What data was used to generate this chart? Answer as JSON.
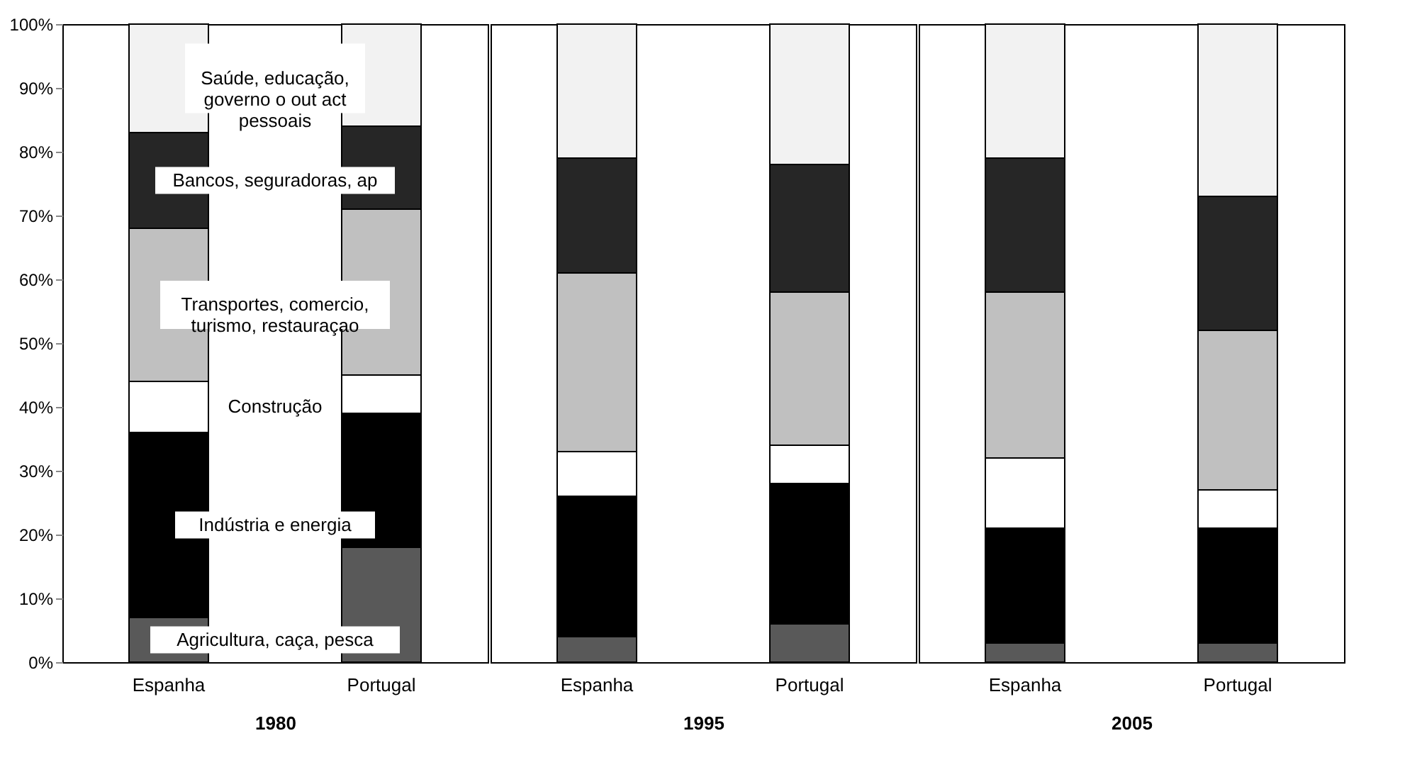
{
  "chart_data": [
    {
      "type": "bar",
      "stacked": true,
      "xlabel": "1980",
      "categories": [
        "Espanha",
        "Portugal"
      ],
      "ylim": [
        0,
        100
      ],
      "yticks": [
        {
          "value": 0,
          "label": "0%"
        },
        {
          "value": 10,
          "label": "10%"
        },
        {
          "value": 20,
          "label": "20%"
        },
        {
          "value": 30,
          "label": "30%"
        },
        {
          "value": 40,
          "label": "40%"
        },
        {
          "value": 50,
          "label": "50%"
        },
        {
          "value": 60,
          "label": "60%"
        },
        {
          "value": 70,
          "label": "70%"
        },
        {
          "value": 80,
          "label": "80%"
        },
        {
          "value": 90,
          "label": "90%"
        },
        {
          "value": 100,
          "label": "100%"
        }
      ],
      "grid": false,
      "legend": false,
      "series": [
        {
          "name": "Agricultura, caça, pesca",
          "color": "#595959",
          "values": [
            7,
            18
          ]
        },
        {
          "name": "Indústria e energia",
          "color": "#000000",
          "values": [
            29,
            21
          ]
        },
        {
          "name": "Construção",
          "color": "#ffffff",
          "values": [
            8,
            6
          ]
        },
        {
          "name": "Transportes, comercio,\nturismo, restauraçao",
          "color": "#c0c0c0",
          "values": [
            24,
            26
          ]
        },
        {
          "name": "Bancos, seguradoras, ap",
          "color": "#262626",
          "values": [
            15,
            13
          ]
        },
        {
          "name": "Saúde, educação,\ngoverno o out act\npessoais",
          "color": "#f2f2f2",
          "values": [
            17,
            16
          ]
        }
      ]
    },
    {
      "type": "bar",
      "stacked": true,
      "xlabel": "1995",
      "categories": [
        "Espanha",
        "Portugal"
      ],
      "ylim": [
        0,
        100
      ],
      "tick_labels": "x",
      "grid": false,
      "legend": false,
      "series": [
        {
          "color": "#595959",
          "values": [
            4,
            6
          ]
        },
        {
          "color": "#000000",
          "values": [
            22,
            22
          ]
        },
        {
          "color": "#ffffff",
          "values": [
            7,
            6
          ]
        },
        {
          "color": "#c0c0c0",
          "values": [
            28,
            24
          ]
        },
        {
          "color": "#262626",
          "values": [
            18,
            20
          ]
        },
        {
          "color": "#f2f2f2",
          "values": [
            21,
            22
          ]
        }
      ]
    },
    {
      "type": "bar",
      "stacked": true,
      "xlabel": "2005",
      "categories": [
        "Espanha",
        "Portugal"
      ],
      "ylim": [
        0,
        100
      ],
      "tick_labels": "x",
      "grid": false,
      "legend": false,
      "series": [
        {
          "color": "#595959",
          "values": [
            3,
            3
          ]
        },
        {
          "color": "#000000",
          "values": [
            18,
            18
          ]
        },
        {
          "color": "#ffffff",
          "values": [
            11,
            6
          ]
        },
        {
          "color": "#c0c0c0",
          "values": [
            26,
            25
          ]
        },
        {
          "color": "#262626",
          "values": [
            21,
            21
          ]
        },
        {
          "color": "#f2f2f2",
          "values": [
            21,
            27
          ]
        }
      ]
    }
  ]
}
